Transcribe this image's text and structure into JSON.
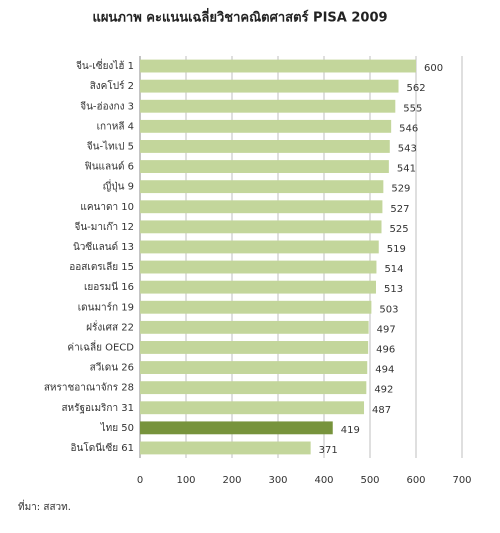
{
  "chart_data": {
    "type": "bar",
    "orientation": "horizontal",
    "title": "แผนภาพ    คะแนนเฉลี่ยวิชาคณิตศาสตร์ PISA 2009",
    "categories": [
      "จีน-เซี่ยงไฮ้  1",
      "สิงคโปร์  2",
      "จีน-ฮ่องกง  3",
      "เกาหลี  4",
      "จีน-ไทเป  5",
      "ฟินแลนด์  6",
      "ญี่ปุ่น  9",
      "แคนาดา  10",
      "จีน-มาเก๊า  12",
      "นิวซีแลนด์  13",
      "ออสเตรเลีย  15",
      "เยอรมนี  16",
      "เดนมาร์ก  19",
      "ฝรั่งเศส  22",
      "ค่าเฉลี่ย OECD",
      "สวีเดน  26",
      "สหราชอาณาจักร  28",
      "สหรัฐอเมริกา  31",
      "ไทย  50",
      "อินโดนีเซีย  61"
    ],
    "values": [
      600,
      562,
      555,
      546,
      543,
      541,
      529,
      527,
      525,
      519,
      514,
      513,
      503,
      497,
      496,
      494,
      492,
      487,
      419,
      371
    ],
    "colors": [
      "#c3d69b",
      "#c3d69b",
      "#c3d69b",
      "#c3d69b",
      "#c3d69b",
      "#c3d69b",
      "#c3d69b",
      "#c3d69b",
      "#c3d69b",
      "#c3d69b",
      "#c3d69b",
      "#c3d69b",
      "#c3d69b",
      "#c3d69b",
      "#c3d69b",
      "#c3d69b",
      "#c3d69b",
      "#c3d69b",
      "#77933c",
      "#c3d69b"
    ],
    "xlim": [
      0,
      700
    ],
    "xticks": [
      0,
      100,
      200,
      300,
      400,
      500,
      600,
      700
    ],
    "grid": true,
    "source": "ที่มา: สสวท."
  }
}
